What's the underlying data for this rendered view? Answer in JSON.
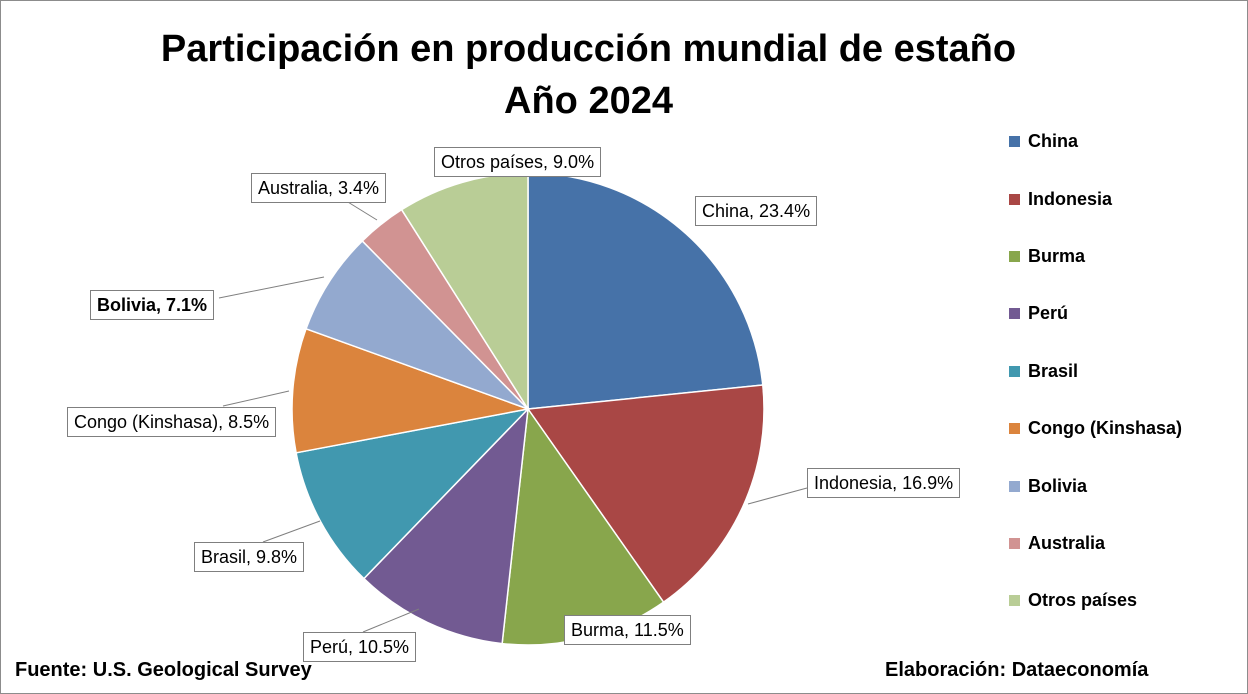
{
  "chart_data": {
    "type": "pie",
    "title_line1": "Participación en producción mundial de estaño",
    "title_line2": "Año 2024",
    "slices": [
      {
        "name": "China",
        "value": 23.4,
        "label": "China, 23.4%",
        "color": "#4672a8"
      },
      {
        "name": "Indonesia",
        "value": 16.9,
        "label": "Indonesia, 16.9%",
        "color": "#a94745"
      },
      {
        "name": "Burma",
        "value": 11.5,
        "label": "Burma, 11.5%",
        "color": "#88a64c"
      },
      {
        "name": "Perú",
        "value": 10.5,
        "label": "Perú, 10.5%",
        "color": "#725a92"
      },
      {
        "name": "Brasil",
        "value": 9.8,
        "label": "Brasil, 9.8%",
        "color": "#4198af"
      },
      {
        "name": "Congo (Kinshasa)",
        "value": 8.5,
        "label": "Congo (Kinshasa), 8.5%",
        "color": "#db843d"
      },
      {
        "name": "Bolivia",
        "value": 7.1,
        "label": "Bolivia, 7.1%",
        "color": "#93a9cf"
      },
      {
        "name": "Australia",
        "value": 3.4,
        "label": "Australia, 3.4%",
        "color": "#d19392"
      },
      {
        "name": "Otros países",
        "value": 9.0,
        "label": "Otros países, 9.0%",
        "color": "#b9cd96"
      }
    ],
    "legend_position": "right"
  },
  "footer": {
    "source": "Fuente: U.S. Geological Survey",
    "credit": "Elaboración: Dataeconomía"
  }
}
